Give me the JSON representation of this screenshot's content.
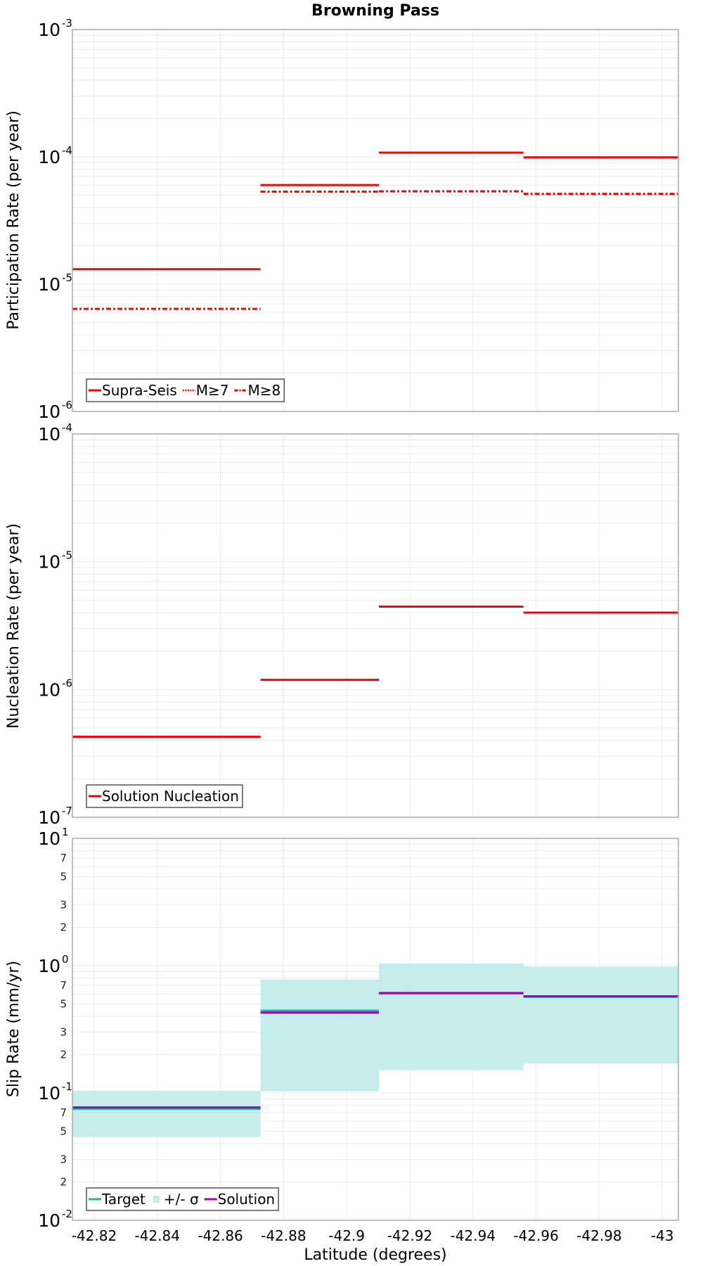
{
  "title": "Browning Pass",
  "x_axis": {
    "label": "Latitude (degrees)",
    "range": [
      -42.8131,
      -43.0051
    ],
    "ticks": [
      -42.82,
      -42.84,
      -42.86,
      -42.88,
      -42.9,
      -42.92,
      -42.94,
      -42.96,
      -42.98,
      -43
    ],
    "tick_labels": [
      "-42.82",
      "-42.84",
      "-42.86",
      "-42.88",
      "-42.9",
      "-42.92",
      "-42.94",
      "-42.96",
      "-42.98",
      "-43"
    ]
  },
  "colors": {
    "red": "#ff0000",
    "teal": "#1fb5b0",
    "band": "#c2ecea",
    "magenta": "#aa00bb",
    "grid": "#ebebeb",
    "frame": "#aaaaaa"
  },
  "chart_data": [
    {
      "type": "line",
      "panel": "participation",
      "title": "Browning Pass",
      "xlabel": "Latitude (degrees)",
      "ylabel": "Participation Rate (per year)",
      "yscale": "log",
      "ylim": [
        1e-06,
        0.001
      ],
      "y_major_ticks": [
        {
          "base": "10",
          "exp": "-3"
        },
        {
          "base": "10",
          "exp": "-4"
        },
        {
          "base": "10",
          "exp": "-5"
        },
        {
          "base": "10",
          "exp": "-6"
        }
      ],
      "grid": true,
      "legend_position": "lower-left",
      "sections": [
        -42.8131,
        -42.8727,
        -42.9102,
        -42.956,
        -43.0051
      ],
      "series": [
        {
          "name": "Supra-Seis",
          "style": "solid",
          "color": "#ff0000",
          "values": [
            1.31e-05,
            6e-05,
            0.000108,
            9.9e-05
          ]
        },
        {
          "name": "M≥7",
          "style": "dotted",
          "color": "#ff0000",
          "values": [
            1.31e-05,
            6e-05,
            0.000108,
            9.9e-05
          ]
        },
        {
          "name": "M≥8",
          "style": "dashdot",
          "color": "#ff0000",
          "values": [
            6.4e-06,
            5.33e-05,
            5.36e-05,
            5.12e-05
          ]
        }
      ]
    },
    {
      "type": "line",
      "panel": "nucleation",
      "xlabel": "Latitude (degrees)",
      "ylabel": "Nucleation Rate (per year)",
      "yscale": "log",
      "ylim": [
        1e-07,
        0.0001
      ],
      "y_major_ticks": [
        {
          "base": "10",
          "exp": "-4"
        },
        {
          "base": "10",
          "exp": "-5"
        },
        {
          "base": "10",
          "exp": "-6"
        },
        {
          "base": "10",
          "exp": "-7"
        }
      ],
      "grid": true,
      "legend_position": "lower-left",
      "sections": [
        -42.8131,
        -42.8727,
        -42.9102,
        -42.956,
        -43.0051
      ],
      "series": [
        {
          "name": "Solution Nucleation",
          "style": "solid",
          "color": "#ff0000",
          "values": [
            4.27e-07,
            1.19e-06,
            4.45e-06,
            4e-06
          ]
        }
      ]
    },
    {
      "type": "line",
      "panel": "slip_rate",
      "xlabel": "Latitude (degrees)",
      "ylabel": "Slip Rate (mm/yr)",
      "yscale": "log",
      "ylim": [
        0.01,
        10
      ],
      "y_major_ticks": [
        {
          "base": "10",
          "exp": "1"
        },
        {
          "base": "10",
          "exp": "0"
        },
        {
          "base": "10",
          "exp": "-1"
        },
        {
          "base": "10",
          "exp": "-2"
        }
      ],
      "y_minor_labels": [
        "7",
        "5",
        "3",
        "2"
      ],
      "grid": true,
      "legend_position": "lower-left",
      "sections": [
        -42.8131,
        -42.8727,
        -42.9102,
        -42.956,
        -43.0051
      ],
      "series": [
        {
          "name": "Target",
          "style": "solid",
          "color": "#1fb5b0",
          "values": [
            0.075,
            0.443,
            0.605,
            0.569
          ]
        },
        {
          "name": "+/- σ",
          "style": "band",
          "color": "#c2ecea",
          "lower": [
            0.045,
            0.103,
            0.151,
            0.17
          ],
          "upper": [
            0.104,
            0.778,
            1.04,
            0.982
          ]
        },
        {
          "name": "Solution",
          "style": "solid",
          "color": "#aa00bb",
          "values": [
            0.077,
            0.428,
            0.61,
            0.575
          ]
        }
      ]
    }
  ]
}
